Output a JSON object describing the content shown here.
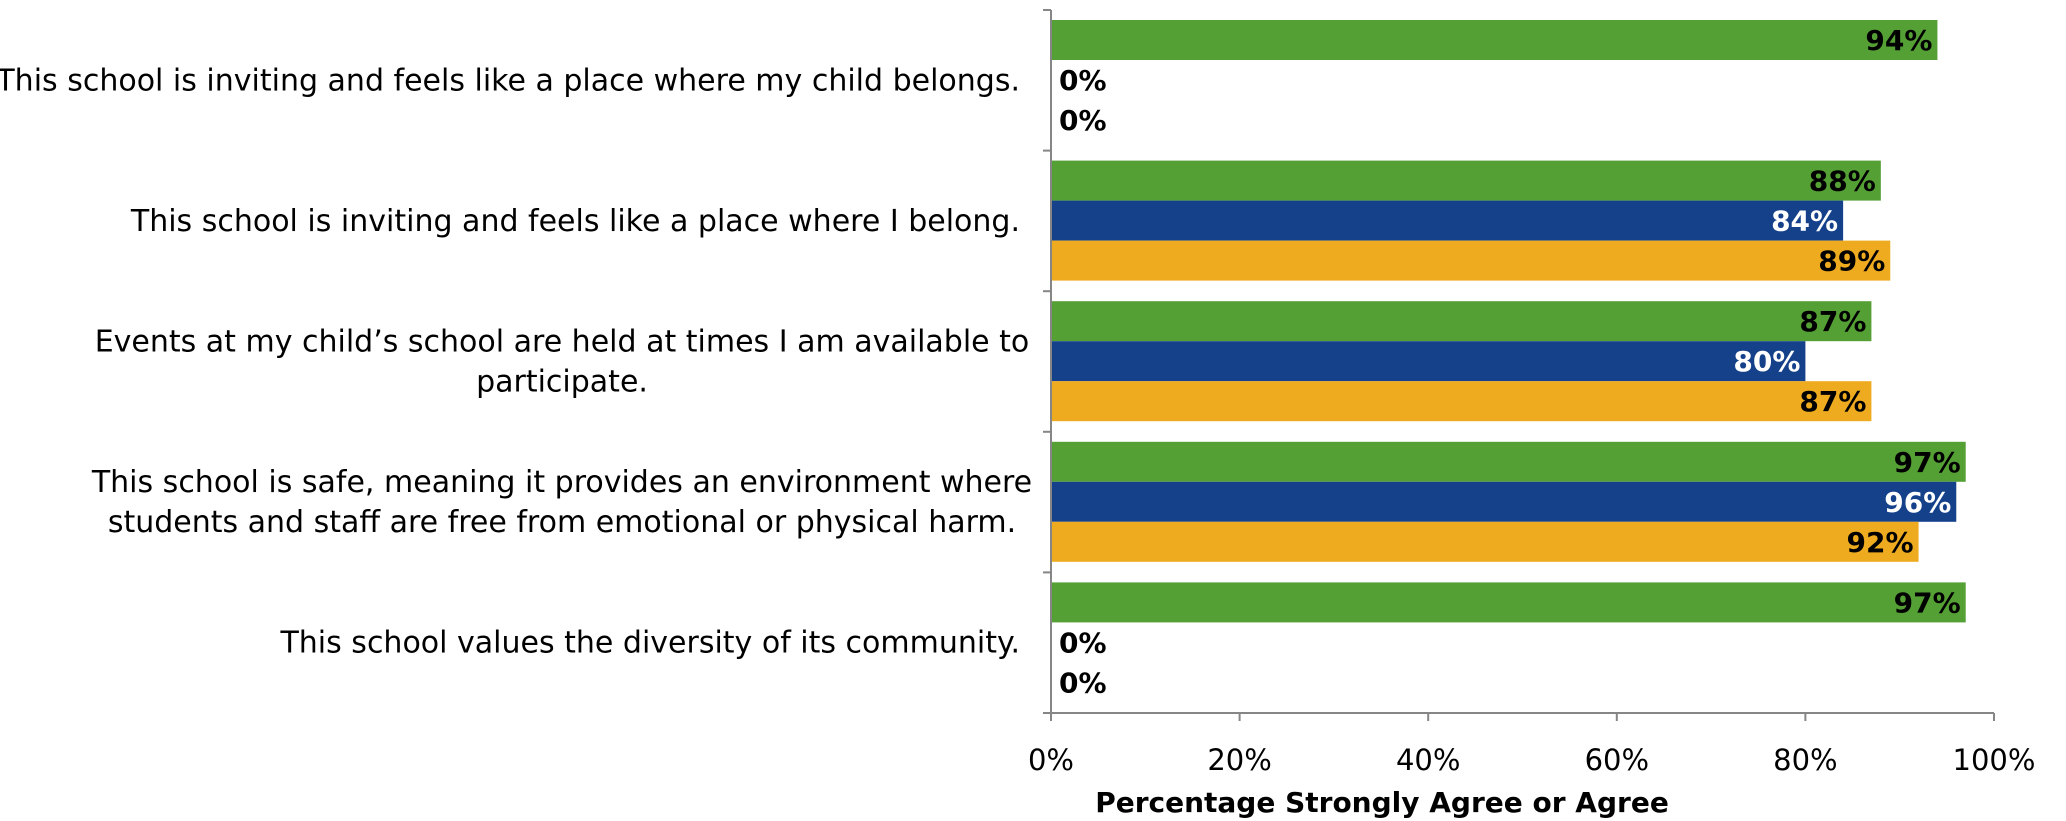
{
  "chart_data": {
    "type": "bar",
    "orientation": "horizontal",
    "title": "",
    "xlabel": "Percentage Strongly Agree or Agree",
    "ylabel": "",
    "xlim": [
      0,
      100
    ],
    "x_ticks": [
      "0%",
      "20%",
      "40%",
      "60%",
      "80%",
      "100%"
    ],
    "categories": [
      [
        "This school is inviting and feels like a place where my child belongs."
      ],
      [
        "This school is inviting and feels like a place where I belong."
      ],
      [
        "Events at my child’s school are held at times I am available to",
        "participate."
      ],
      [
        "This school is safe, meaning it provides an environment where",
        "students and staff are free from emotional or physical harm."
      ],
      [
        "This school values the diversity of its community."
      ]
    ],
    "series": [
      {
        "color": "#55a035",
        "label_color": "#000000",
        "values": [
          94,
          88,
          87,
          97,
          97
        ]
      },
      {
        "color": "#14418a",
        "label_color": "#ffffff",
        "values": [
          0,
          84,
          80,
          96,
          0
        ]
      },
      {
        "color": "#efab1f",
        "label_color": "#000000",
        "values": [
          0,
          89,
          87,
          92,
          0
        ]
      }
    ],
    "value_suffix": "%",
    "grid": false,
    "legend": "none"
  }
}
